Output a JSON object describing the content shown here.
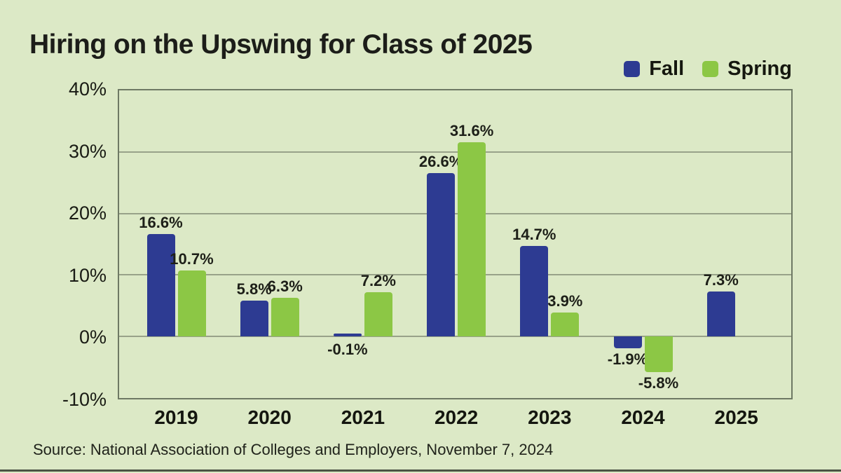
{
  "page": {
    "title": "Hiring on the Upswing for Class of 2025",
    "source": "Source: National Association of Colleges and Employers, November 7, 2024"
  },
  "colors": {
    "background": "#dce9c6",
    "fall_bar": "#2d3b92",
    "spring_bar": "#8cc745",
    "grid_line": "#98a289",
    "plot_border": "#6e7964",
    "text": "#1d1f1a",
    "bottom_rule": "#4b5344"
  },
  "chart_data": {
    "type": "bar",
    "title": "Hiring on the Upswing for Class of 2025",
    "categories": [
      "2019",
      "2020",
      "2021",
      "2022",
      "2023",
      "2024",
      "2025"
    ],
    "series": [
      {
        "name": "Fall",
        "color": "#2d3b92",
        "values": [
          16.6,
          5.8,
          -0.1,
          26.6,
          14.7,
          -1.9,
          7.3
        ]
      },
      {
        "name": "Spring",
        "color": "#8cc745",
        "values": [
          10.7,
          6.3,
          7.2,
          31.6,
          3.9,
          -5.8,
          null
        ]
      }
    ],
    "value_label_suffix": "%",
    "xlabel": "",
    "ylabel": "",
    "y_axis": {
      "min": -10,
      "max": 40,
      "tick_step": 10,
      "ticks": [
        40,
        30,
        20,
        10,
        0,
        -10
      ],
      "tick_labels": [
        "40%",
        "30%",
        "20%",
        "10%",
        "0%",
        "-10%"
      ]
    },
    "grid": true,
    "legend_position": "top-right"
  }
}
